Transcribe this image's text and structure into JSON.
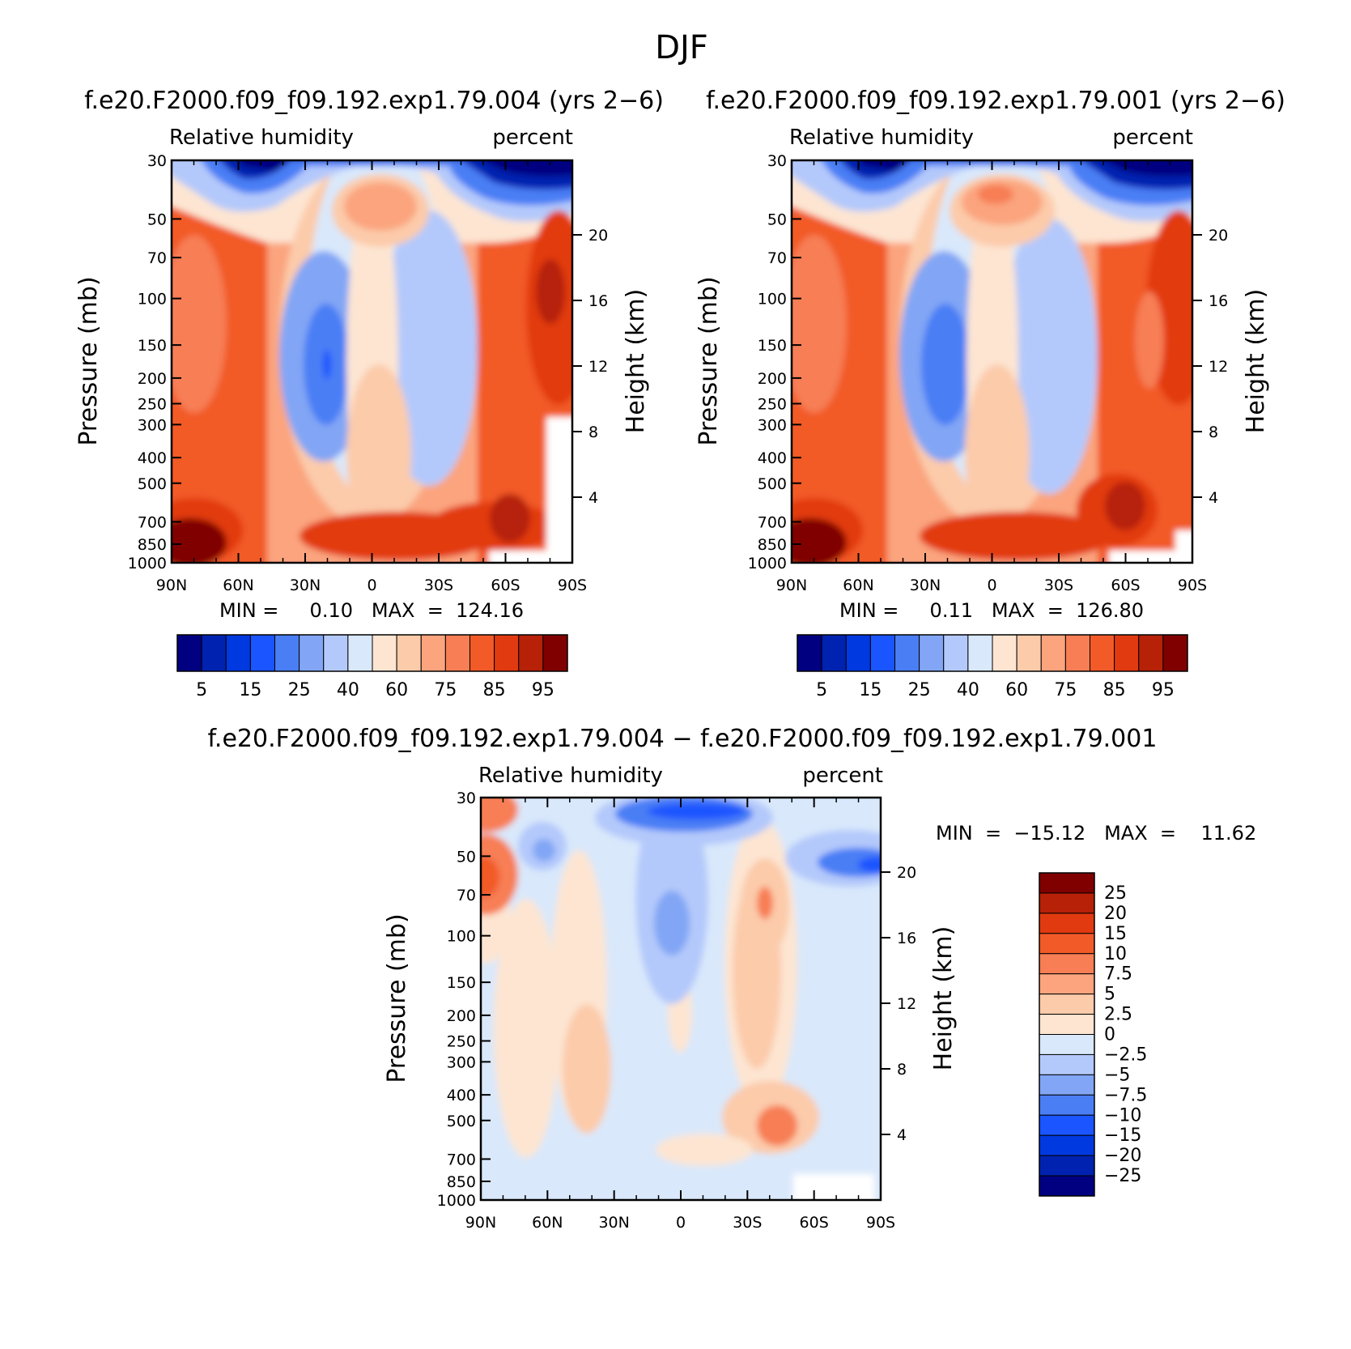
{
  "page_title": "DJF",
  "panels": [
    {
      "title": "f.e20.F2000.f09_f09.192.exp1.79.004 (yrs 2−6)",
      "left_label": "Relative humidity",
      "right_label": "percent",
      "min_max": "MIN =     0.10   MAX  =  124.16"
    },
    {
      "title": "f.e20.F2000.f09_f09.192.exp1.79.001 (yrs 2−6)",
      "left_label": "Relative humidity",
      "right_label": "percent",
      "min_max": "MIN =     0.11   MAX  =  126.80"
    },
    {
      "title": "f.e20.F2000.f09_f09.192.exp1.79.004 − f.e20.F2000.f09_f09.192.exp1.79.001",
      "left_label": "Relative humidity",
      "right_label": "percent",
      "min_max": "MIN  =  −15.12   MAX  =    11.62"
    }
  ],
  "axes": {
    "ylabel": "Pressure (mb)",
    "y2label": "Height (km)",
    "pressure_ticks": [
      "30",
      "50",
      "70",
      "100",
      "150",
      "200",
      "250",
      "300",
      "400",
      "500",
      "700",
      "850",
      "1000"
    ],
    "height_ticks": [
      "20",
      "16",
      "12",
      "8",
      "4"
    ],
    "lat_ticks": [
      "90N",
      "60N",
      "30N",
      "0",
      "30S",
      "60S",
      "90S"
    ]
  },
  "colorbars": {
    "abs": {
      "colors": [
        "#000080",
        "#0022b0",
        "#0039e0",
        "#1a55ff",
        "#4a7ef5",
        "#82a6f5",
        "#b4c9fb",
        "#d9e8fb",
        "#fde5d2",
        "#fccbaa",
        "#fba47e",
        "#f77e55",
        "#f25a28",
        "#e23a10",
        "#b62108",
        "#800000"
      ],
      "labels": [
        "5",
        "15",
        "25",
        "40",
        "60",
        "75",
        "85",
        "95"
      ]
    },
    "diff": {
      "colors": [
        "#800000",
        "#b62108",
        "#e23a10",
        "#f25a28",
        "#f77e55",
        "#fba47e",
        "#fccbaa",
        "#fde5d2",
        "#d9e8fb",
        "#b4c9fb",
        "#82a6f5",
        "#4a7ef5",
        "#1a55ff",
        "#0039e0",
        "#0022b0",
        "#000080"
      ],
      "labels": [
        "25",
        "20",
        "15",
        "10",
        "7.5",
        "5",
        "2.5",
        "0",
        "−2.5",
        "−5",
        "−7.5",
        "−10",
        "−15",
        "−20",
        "−25"
      ]
    }
  },
  "chart_data": [
    {
      "type": "heatmap",
      "title": "f.e20.F2000.f09_f09.192.exp1.79.004 (yrs 2−6)",
      "variable": "Relative humidity",
      "units": "percent",
      "ylabel": "Pressure (mb)",
      "y2label": "Height (km)",
      "x": [
        90,
        60,
        30,
        0,
        -30,
        -60,
        -90
      ],
      "ylim": [
        1000,
        30
      ],
      "contour_levels": [
        5,
        10,
        15,
        20,
        25,
        30,
        40,
        50,
        60,
        70,
        75,
        80,
        85,
        90,
        95
      ],
      "min": 0.1,
      "max": 124.16
    },
    {
      "type": "heatmap",
      "title": "f.e20.F2000.f09_f09.192.exp1.79.001 (yrs 2−6)",
      "variable": "Relative humidity",
      "units": "percent",
      "ylabel": "Pressure (mb)",
      "y2label": "Height (km)",
      "x": [
        90,
        60,
        30,
        0,
        -30,
        -60,
        -90
      ],
      "ylim": [
        1000,
        30
      ],
      "contour_levels": [
        5,
        10,
        15,
        20,
        25,
        30,
        40,
        50,
        60,
        70,
        75,
        80,
        85,
        90,
        95
      ],
      "min": 0.11,
      "max": 126.8
    },
    {
      "type": "heatmap",
      "title": "f.e20.F2000.f09_f09.192.exp1.79.004 − f.e20.F2000.f09_f09.192.exp1.79.001",
      "variable": "Relative humidity",
      "units": "percent",
      "ylabel": "Pressure (mb)",
      "y2label": "Height (km)",
      "x": [
        90,
        60,
        30,
        0,
        -30,
        -60,
        -90
      ],
      "ylim": [
        1000,
        30
      ],
      "contour_levels": [
        -25,
        -20,
        -15,
        -10,
        -7.5,
        -5,
        -2.5,
        0,
        2.5,
        5,
        7.5,
        10,
        15,
        20,
        25
      ],
      "min": -15.12,
      "max": 11.62
    }
  ]
}
